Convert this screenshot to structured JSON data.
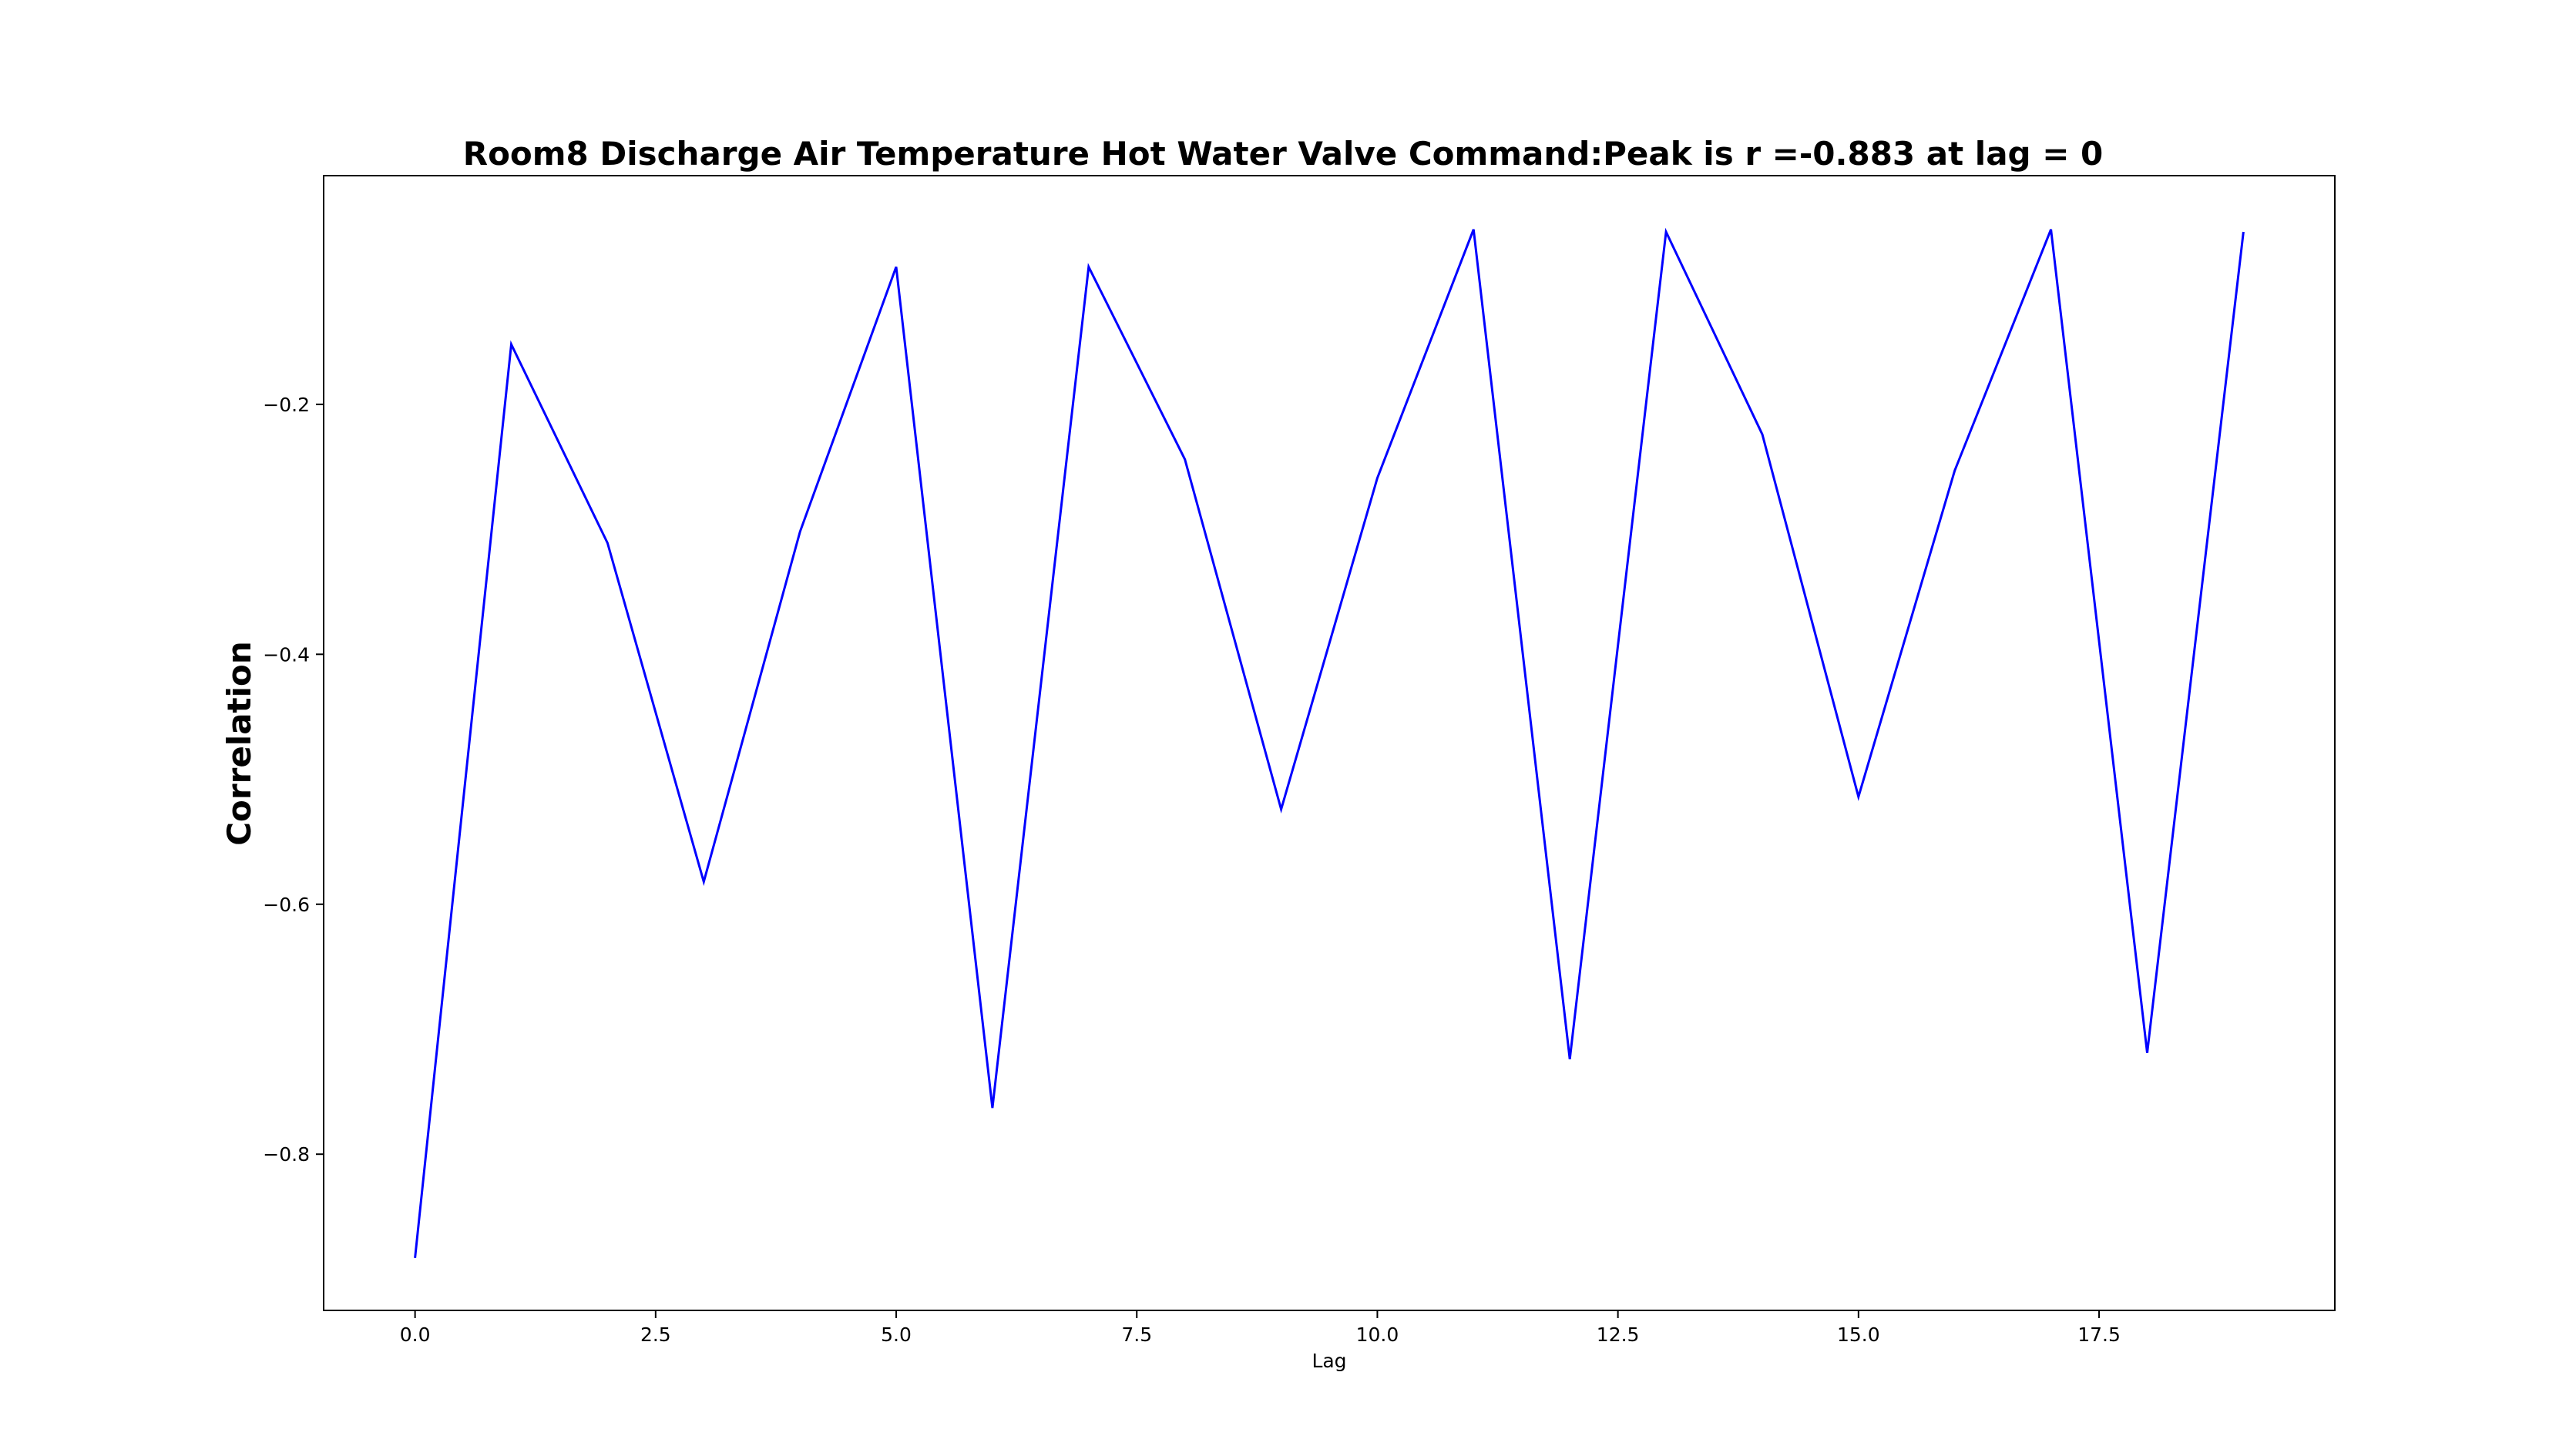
{
  "chart_data": {
    "type": "line",
    "title": "Room8 Discharge Air Temperature Hot Water Valve Command:Peak is r =-0.883 at lag = 0",
    "xlabel": "Lag",
    "ylabel": "Correlation",
    "xlim": [
      -0.95,
      19.95
    ],
    "ylim": [
      -0.925,
      -0.017
    ],
    "xticks": [
      0.0,
      2.5,
      5.0,
      7.5,
      10.0,
      12.5,
      15.0,
      17.5
    ],
    "xtick_labels": [
      "0.0",
      "2.5",
      "5.0",
      "7.5",
      "10.0",
      "12.5",
      "15.0",
      "17.5"
    ],
    "yticks": [
      -0.2,
      -0.4,
      -0.6,
      -0.8
    ],
    "ytick_labels": [
      "−0.2",
      "−0.4",
      "−0.6",
      "−0.8"
    ],
    "grid": false,
    "series": [
      {
        "color": "#0000ff",
        "x": [
          0,
          1,
          2,
          3,
          4,
          5,
          6,
          7,
          8,
          9,
          10,
          11,
          12,
          13,
          14,
          15,
          16,
          17,
          18,
          19
        ],
        "values": [
          -0.883,
          -0.152,
          -0.311,
          -0.582,
          -0.302,
          -0.09,
          -0.763,
          -0.09,
          -0.244,
          -0.524,
          -0.259,
          -0.06,
          -0.724,
          -0.062,
          -0.224,
          -0.514,
          -0.253,
          -0.06,
          -0.719,
          -0.062
        ]
      }
    ]
  }
}
